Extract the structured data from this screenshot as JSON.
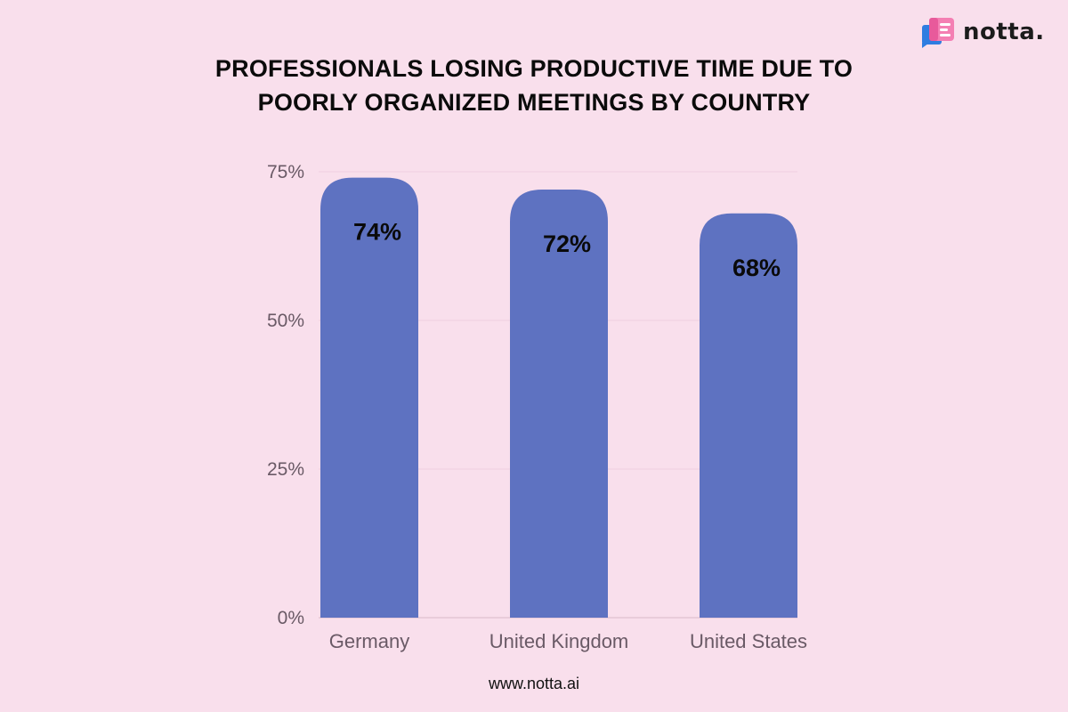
{
  "brand": {
    "name": "notta.",
    "icon": "notta-logo-icon"
  },
  "footer": {
    "url": "www.notta.ai"
  },
  "colors": {
    "background": "#f9dfec",
    "bar": "#5e72c1",
    "grid": "#efcfdf",
    "axis_text": "#6a5a66"
  },
  "chart_data": {
    "type": "bar",
    "title_lines": [
      "PROFESSIONALS LOSING PRODUCTIVE TIME DUE TO",
      "POORLY ORGANIZED MEETINGS BY COUNTRY"
    ],
    "categories": [
      "Germany",
      "United Kingdom",
      "United States"
    ],
    "values": [
      74,
      72,
      68
    ],
    "data_labels": [
      "74%",
      "72%",
      "68%"
    ],
    "xlabel": "",
    "ylabel": "",
    "ylim": [
      0,
      75
    ],
    "yticks": [
      0,
      25,
      50,
      75
    ],
    "ytick_labels": [
      "0%",
      "25%",
      "50%",
      "75%"
    ],
    "grid": true,
    "legend": "none"
  }
}
